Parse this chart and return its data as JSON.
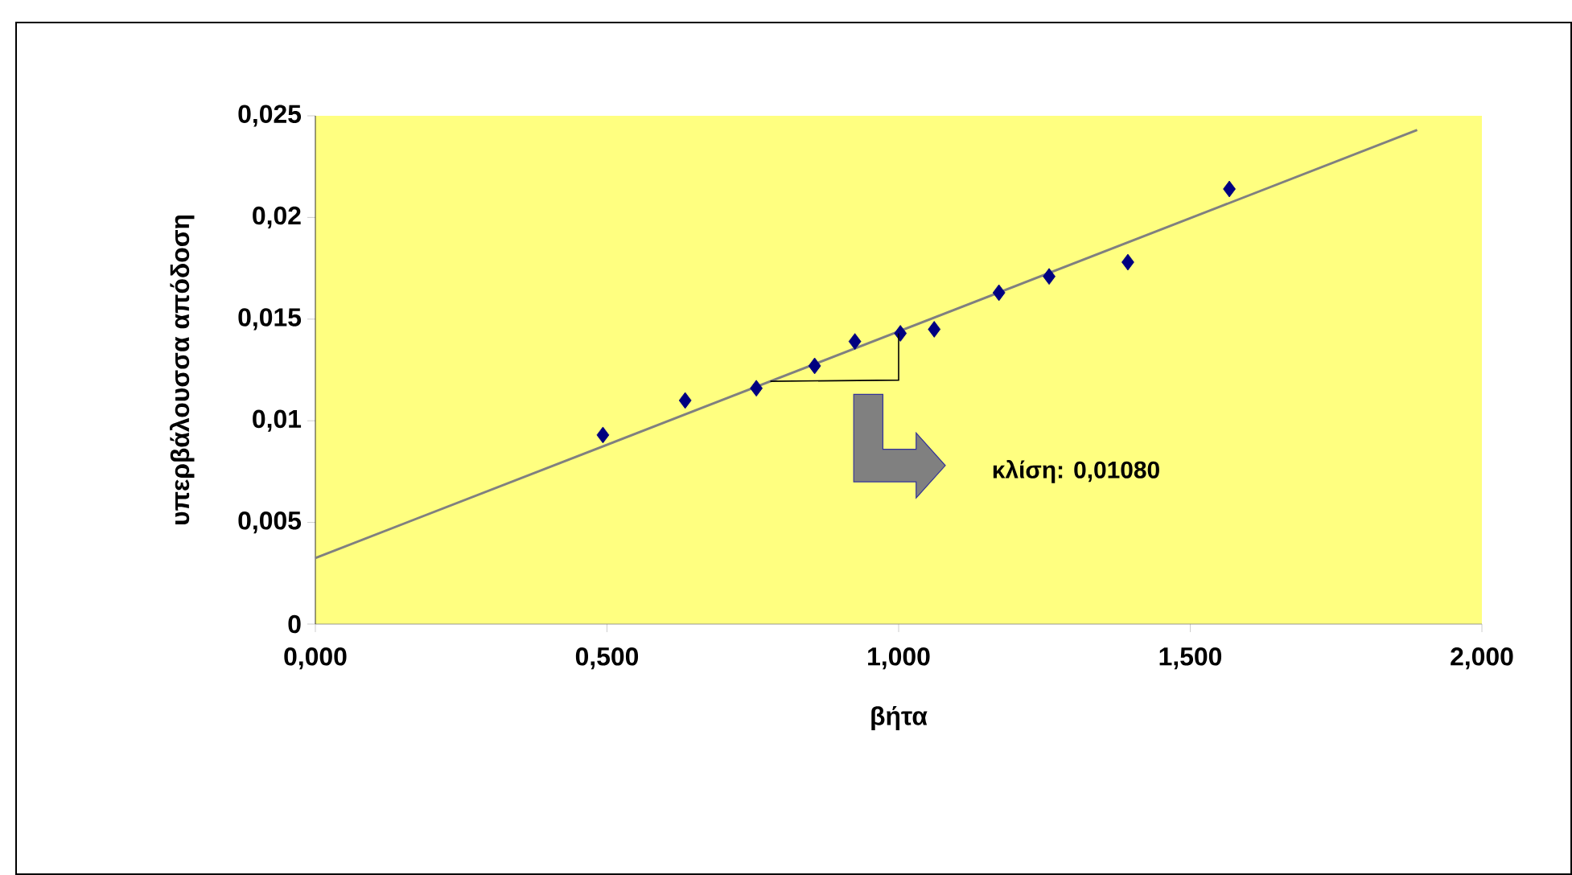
{
  "chart_data": {
    "type": "scatter",
    "xlabel": "βήτα",
    "ylabel": "υπερβάλουσσα απόδοση",
    "xlim": [
      0,
      2
    ],
    "ylim": [
      0,
      0.025
    ],
    "xticks": [
      {
        "value": 0,
        "label": "0,000"
      },
      {
        "value": 0.5,
        "label": "0,500"
      },
      {
        "value": 1,
        "label": "1,000"
      },
      {
        "value": 1.5,
        "label": "1,500"
      },
      {
        "value": 2,
        "label": "2,000"
      }
    ],
    "yticks": [
      {
        "value": 0,
        "label": "0"
      },
      {
        "value": 0.005,
        "label": "0,005"
      },
      {
        "value": 0.01,
        "label": "0,01"
      },
      {
        "value": 0.015,
        "label": "0,015"
      },
      {
        "value": 0.02,
        "label": "0,02"
      },
      {
        "value": 0.025,
        "label": "0,025"
      }
    ],
    "marker": "diamond",
    "series": [
      {
        "color": "#000080",
        "x": [
          0.493,
          0.634,
          0.756,
          0.856,
          0.925,
          1.003,
          1.061,
          1.172,
          1.258,
          1.393,
          1.567
        ],
        "values": [
          0.0093,
          0.011,
          0.0116,
          0.0127,
          0.0139,
          0.0143,
          0.0145,
          0.0163,
          0.0171,
          0.0178,
          0.0214
        ]
      },
      {
        "type": "line",
        "marker": "none",
        "color": "#808080",
        "x": [
          0,
          1.889
        ],
        "values": [
          0.00325,
          0.0243
        ]
      }
    ],
    "annotations": [
      "κλίση: 0,01080"
    ]
  }
}
